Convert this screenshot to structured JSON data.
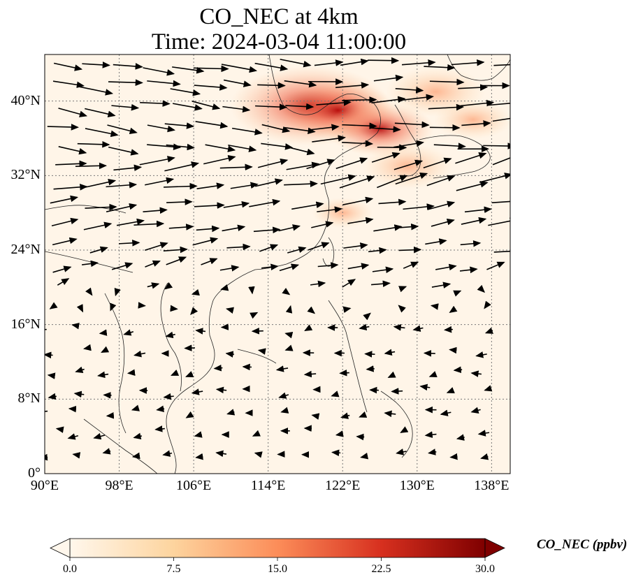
{
  "title": {
    "line1": "CO_NEC at 4km",
    "line2": "Time: 2024-03-04 11:00:00"
  },
  "map": {
    "extent": {
      "lon_min": 90,
      "lon_max": 140,
      "lat_min": 0,
      "lat_max": 45
    },
    "gridlines": "dotted",
    "lat_ticks": [
      {
        "value": 40,
        "label": "40°N"
      },
      {
        "value": 32,
        "label": "32°N"
      },
      {
        "value": 24,
        "label": "24°N"
      },
      {
        "value": 16,
        "label": "16°N"
      },
      {
        "value": 8,
        "label": "8°N"
      },
      {
        "value": 0,
        "label": "0°"
      }
    ],
    "lon_ticks": [
      {
        "value": 90,
        "label": "90°E"
      },
      {
        "value": 98,
        "label": "98°E"
      },
      {
        "value": 106,
        "label": "106°E"
      },
      {
        "value": 114,
        "label": "114°E"
      },
      {
        "value": 122,
        "label": "122°E"
      },
      {
        "value": 130,
        "label": "130°E"
      },
      {
        "value": 138,
        "label": "138°E"
      }
    ],
    "field": "CO_NEC",
    "plume_regions": [
      {
        "lon": 118.5,
        "lat": 39.5,
        "value": 28
      },
      {
        "lon": 121.5,
        "lat": 39.0,
        "value": 18
      },
      {
        "lon": 126.0,
        "lat": 37.0,
        "value": 16
      },
      {
        "lon": 129.0,
        "lat": 33.0,
        "value": 12
      },
      {
        "lon": 132.0,
        "lat": 41.0,
        "value": 14
      },
      {
        "lon": 136.0,
        "lat": 38.0,
        "value": 9
      },
      {
        "lon": 122.0,
        "lat": 28.0,
        "value": 5
      }
    ]
  },
  "colorbar": {
    "label": "CO_NEC (ppbv)",
    "min": 0.0,
    "max": 30.0,
    "ticks": [
      "0.0",
      "7.5",
      "15.0",
      "22.5",
      "30.0"
    ],
    "colormap": "OrRd",
    "colors": [
      "#fff7ec",
      "#fdd49e",
      "#fc8d59",
      "#d7301f",
      "#7f0000"
    ],
    "extend": "both"
  },
  "wind_vectors": "black arrows"
}
